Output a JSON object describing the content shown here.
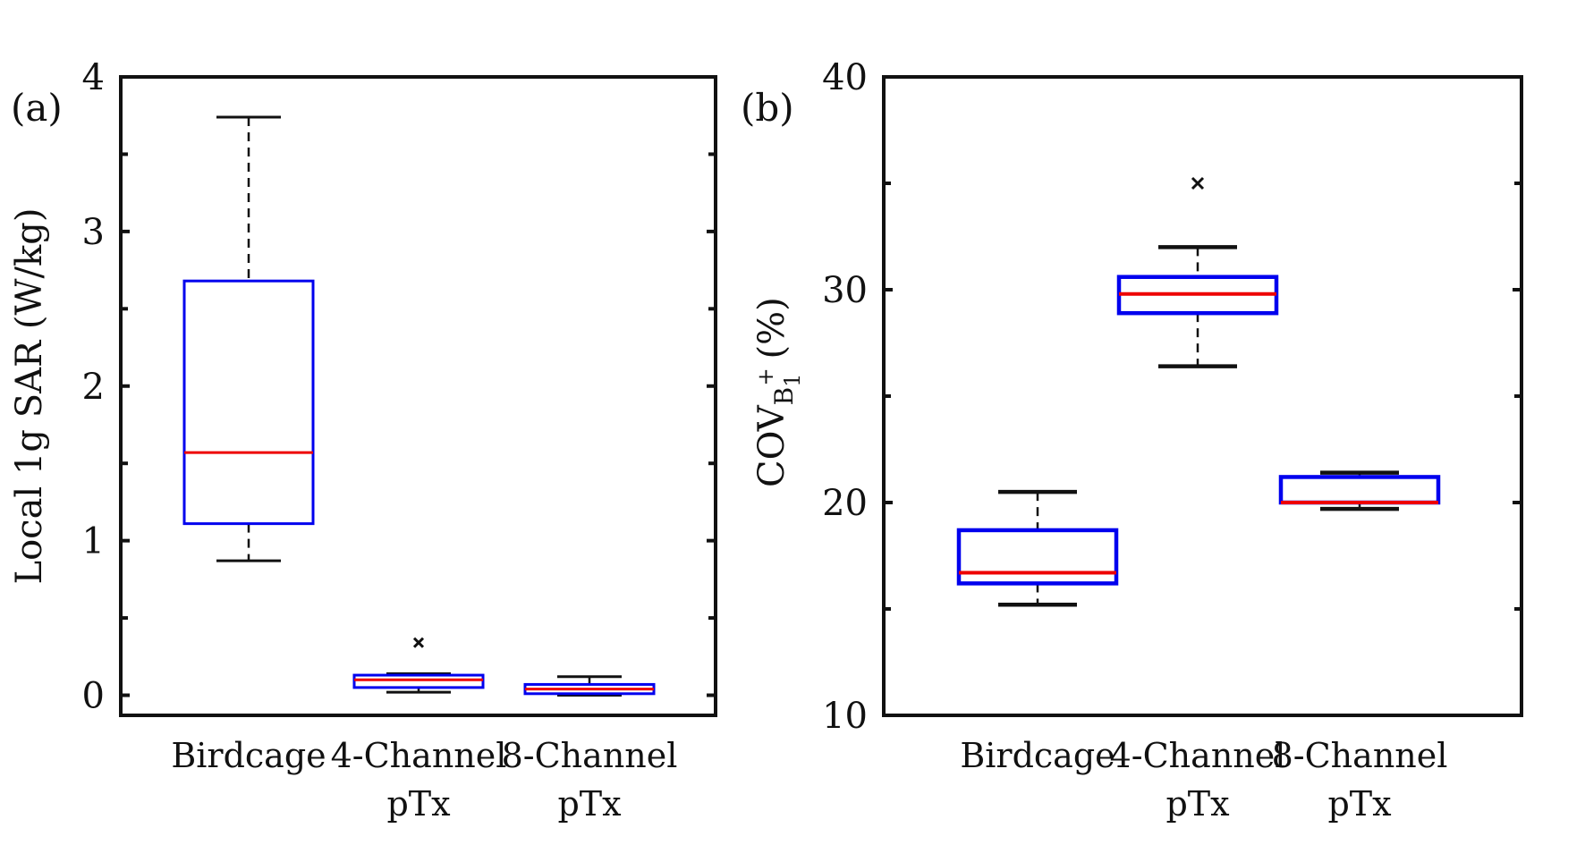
{
  "chart_data": [
    {
      "type": "box",
      "panel_label": "(a)",
      "ylabel": "Local 1g SAR  (W/kg)",
      "ylim": [
        -0.13,
        4
      ],
      "yticks": [
        0,
        1,
        2,
        3,
        4
      ],
      "yticks_minor": [
        0.5,
        1.5,
        2.5,
        3.5
      ],
      "categories": [
        {
          "line1": "Birdcage",
          "line2": ""
        },
        {
          "line1": "4-Channel",
          "line2": "pTx"
        },
        {
          "line1": "8-Channel",
          "line2": "pTx"
        }
      ],
      "boxes": [
        {
          "whisker_low": 0.87,
          "q1": 1.11,
          "median": 1.57,
          "q3": 2.68,
          "whisker_high": 3.74,
          "outliers": []
        },
        {
          "whisker_low": 0.02,
          "q1": 0.05,
          "median": 0.1,
          "q3": 0.13,
          "whisker_high": 0.14,
          "outliers": [
            0.34
          ]
        },
        {
          "whisker_low": 0.0,
          "q1": 0.01,
          "median": 0.04,
          "q3": 0.07,
          "whisker_high": 0.12,
          "outliers": []
        }
      ]
    },
    {
      "type": "box",
      "panel_label": "(b)",
      "ylabel_base": "COV",
      "ylabel_sub": "B",
      "ylabel_subsub": "1",
      "ylabel_sup": "+",
      "ylabel_unit": "(%)",
      "ylim": [
        10,
        40
      ],
      "yticks": [
        10,
        20,
        30,
        40
      ],
      "yticks_minor": [
        15,
        25,
        35
      ],
      "categories": [
        {
          "line1": "Birdcage",
          "line2": ""
        },
        {
          "line1": "4-Channel",
          "line2": "pTx"
        },
        {
          "line1": "8-Channel",
          "line2": "pTx"
        }
      ],
      "boxes": [
        {
          "whisker_low": 15.2,
          "q1": 16.2,
          "median": 16.7,
          "q3": 18.7,
          "whisker_high": 20.5,
          "outliers": []
        },
        {
          "whisker_low": 26.4,
          "q1": 28.9,
          "median": 29.8,
          "q3": 30.6,
          "whisker_high": 32.0,
          "outliers": [
            35.0
          ]
        },
        {
          "whisker_low": 19.7,
          "q1": 20.0,
          "median": 20.0,
          "q3": 21.2,
          "whisker_high": 21.4,
          "outliers": []
        }
      ]
    }
  ],
  "colors": {
    "box": "#0000ee",
    "median": "#ee0000",
    "whisker": "#111111",
    "axis": "#111111"
  }
}
